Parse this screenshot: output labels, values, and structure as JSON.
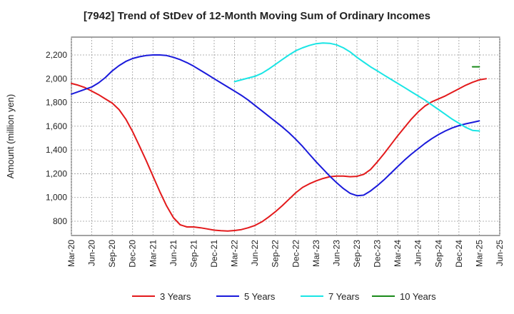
{
  "chart_data": {
    "type": "line",
    "title": "[7942]  Trend of StDev of 12-Month Moving Sum of Ordinary Incomes",
    "ylabel": "Amount (million yen)",
    "xlabel": "",
    "x_ticks": [
      "Mar-20",
      "Jun-20",
      "Sep-20",
      "Dec-20",
      "Mar-21",
      "Jun-21",
      "Sep-21",
      "Dec-21",
      "Mar-22",
      "Jun-22",
      "Sep-22",
      "Dec-22",
      "Mar-23",
      "Jun-23",
      "Sep-23",
      "Dec-23",
      "Mar-24",
      "Jun-24",
      "Sep-24",
      "Dec-24",
      "Mar-25",
      "Jun-25"
    ],
    "y_ticks": [
      800,
      1000,
      1200,
      1400,
      1600,
      1800,
      2000,
      2200
    ],
    "y_tick_labels": [
      "800",
      "1,000",
      "1,200",
      "1,400",
      "1,600",
      "1,800",
      "2,000",
      "2,200"
    ],
    "ylim": [
      680,
      2350
    ],
    "grid": true,
    "legend_position": "bottom",
    "series": [
      {
        "name": "3 Years",
        "color": "#e31a1c",
        "points": [
          [
            "Mar-20",
            1960
          ],
          [
            "Apr-20",
            1945
          ],
          [
            "May-20",
            1925
          ],
          [
            "Jun-20",
            1895
          ],
          [
            "Jul-20",
            1865
          ],
          [
            "Aug-20",
            1830
          ],
          [
            "Sep-20",
            1795
          ],
          [
            "Oct-20",
            1740
          ],
          [
            "Nov-20",
            1660
          ],
          [
            "Dec-20",
            1555
          ],
          [
            "Jan-21",
            1435
          ],
          [
            "Feb-21",
            1310
          ],
          [
            "Mar-21",
            1180
          ],
          [
            "Apr-21",
            1050
          ],
          [
            "May-21",
            930
          ],
          [
            "Jun-21",
            830
          ],
          [
            "Jul-21",
            770
          ],
          [
            "Aug-21",
            752
          ],
          [
            "Sep-21",
            752
          ],
          [
            "Oct-21",
            745
          ],
          [
            "Nov-21",
            735
          ],
          [
            "Dec-21",
            725
          ],
          [
            "Jan-22",
            720
          ],
          [
            "Feb-22",
            718
          ],
          [
            "Mar-22",
            722
          ],
          [
            "Apr-22",
            730
          ],
          [
            "May-22",
            745
          ],
          [
            "Jun-22",
            765
          ],
          [
            "Jul-22",
            795
          ],
          [
            "Aug-22",
            835
          ],
          [
            "Sep-22",
            880
          ],
          [
            "Oct-22",
            930
          ],
          [
            "Nov-22",
            985
          ],
          [
            "Dec-22",
            1040
          ],
          [
            "Jan-23",
            1085
          ],
          [
            "Feb-23",
            1115
          ],
          [
            "Mar-23",
            1140
          ],
          [
            "Apr-23",
            1160
          ],
          [
            "May-23",
            1175
          ],
          [
            "Jun-23",
            1180
          ],
          [
            "Jul-23",
            1180
          ],
          [
            "Aug-23",
            1175
          ],
          [
            "Sep-23",
            1178
          ],
          [
            "Oct-23",
            1195
          ],
          [
            "Nov-23",
            1235
          ],
          [
            "Dec-23",
            1300
          ],
          [
            "Jan-24",
            1370
          ],
          [
            "Feb-24",
            1445
          ],
          [
            "Mar-24",
            1520
          ],
          [
            "Apr-24",
            1590
          ],
          [
            "May-24",
            1660
          ],
          [
            "Jun-24",
            1720
          ],
          [
            "Jul-24",
            1770
          ],
          [
            "Aug-24",
            1805
          ],
          [
            "Sep-24",
            1830
          ],
          [
            "Oct-24",
            1855
          ],
          [
            "Nov-24",
            1885
          ],
          [
            "Dec-24",
            1915
          ],
          [
            "Jan-25",
            1945
          ],
          [
            "Feb-25",
            1970
          ],
          [
            "Mar-25",
            1990
          ],
          [
            "Apr-25",
            2000
          ]
        ]
      },
      {
        "name": "5 Years",
        "color": "#1a1adb",
        "points": [
          [
            "Mar-20",
            1870
          ],
          [
            "Apr-20",
            1890
          ],
          [
            "May-20",
            1910
          ],
          [
            "Jun-20",
            1930
          ],
          [
            "Jul-20",
            1965
          ],
          [
            "Aug-20",
            2010
          ],
          [
            "Sep-20",
            2065
          ],
          [
            "Oct-20",
            2110
          ],
          [
            "Nov-20",
            2145
          ],
          [
            "Dec-20",
            2170
          ],
          [
            "Jan-21",
            2185
          ],
          [
            "Feb-21",
            2195
          ],
          [
            "Mar-21",
            2200
          ],
          [
            "Apr-21",
            2200
          ],
          [
            "May-21",
            2195
          ],
          [
            "Jun-21",
            2180
          ],
          [
            "Jul-21",
            2160
          ],
          [
            "Aug-21",
            2135
          ],
          [
            "Sep-21",
            2105
          ],
          [
            "Oct-21",
            2070
          ],
          [
            "Nov-21",
            2035
          ],
          [
            "Dec-21",
            2000
          ],
          [
            "Jan-22",
            1965
          ],
          [
            "Feb-22",
            1930
          ],
          [
            "Mar-22",
            1895
          ],
          [
            "Apr-22",
            1860
          ],
          [
            "May-22",
            1820
          ],
          [
            "Jun-22",
            1775
          ],
          [
            "Jul-22",
            1730
          ],
          [
            "Aug-22",
            1685
          ],
          [
            "Sep-22",
            1640
          ],
          [
            "Oct-22",
            1595
          ],
          [
            "Nov-22",
            1545
          ],
          [
            "Dec-22",
            1490
          ],
          [
            "Jan-23",
            1430
          ],
          [
            "Feb-23",
            1365
          ],
          [
            "Mar-23",
            1300
          ],
          [
            "Apr-23",
            1240
          ],
          [
            "May-23",
            1180
          ],
          [
            "Jun-23",
            1125
          ],
          [
            "Jul-23",
            1075
          ],
          [
            "Aug-23",
            1035
          ],
          [
            "Sep-23",
            1015
          ],
          [
            "Oct-23",
            1020
          ],
          [
            "Nov-23",
            1055
          ],
          [
            "Dec-23",
            1100
          ],
          [
            "Jan-24",
            1150
          ],
          [
            "Feb-24",
            1205
          ],
          [
            "Mar-24",
            1260
          ],
          [
            "Apr-24",
            1315
          ],
          [
            "May-24",
            1365
          ],
          [
            "Jun-24",
            1410
          ],
          [
            "Jul-24",
            1455
          ],
          [
            "Aug-24",
            1495
          ],
          [
            "Sep-24",
            1530
          ],
          [
            "Oct-24",
            1560
          ],
          [
            "Nov-24",
            1585
          ],
          [
            "Dec-24",
            1605
          ],
          [
            "Jan-25",
            1620
          ],
          [
            "Feb-25",
            1632
          ],
          [
            "Mar-25",
            1645
          ]
        ]
      },
      {
        "name": "7 Years",
        "color": "#1ae5e5",
        "points": [
          [
            "Mar-22",
            1975
          ],
          [
            "Apr-22",
            1990
          ],
          [
            "May-22",
            2005
          ],
          [
            "Jun-22",
            2020
          ],
          [
            "Jul-22",
            2045
          ],
          [
            "Aug-22",
            2080
          ],
          [
            "Sep-22",
            2120
          ],
          [
            "Oct-22",
            2160
          ],
          [
            "Nov-22",
            2200
          ],
          [
            "Dec-22",
            2235
          ],
          [
            "Jan-23",
            2260
          ],
          [
            "Feb-23",
            2280
          ],
          [
            "Mar-23",
            2295
          ],
          [
            "Apr-23",
            2300
          ],
          [
            "May-23",
            2298
          ],
          [
            "Jun-23",
            2285
          ],
          [
            "Jul-23",
            2260
          ],
          [
            "Aug-23",
            2225
          ],
          [
            "Sep-23",
            2180
          ],
          [
            "Oct-23",
            2140
          ],
          [
            "Nov-23",
            2100
          ],
          [
            "Dec-23",
            2065
          ],
          [
            "Jan-24",
            2030
          ],
          [
            "Feb-24",
            1995
          ],
          [
            "Mar-24",
            1960
          ],
          [
            "Apr-24",
            1925
          ],
          [
            "May-24",
            1890
          ],
          [
            "Jun-24",
            1855
          ],
          [
            "Jul-24",
            1820
          ],
          [
            "Aug-24",
            1780
          ],
          [
            "Sep-24",
            1740
          ],
          [
            "Oct-24",
            1700
          ],
          [
            "Nov-24",
            1660
          ],
          [
            "Dec-24",
            1625
          ],
          [
            "Jan-25",
            1590
          ],
          [
            "Feb-25",
            1565
          ],
          [
            "Mar-25",
            1560
          ]
        ]
      },
      {
        "name": "10 Years",
        "color": "#1a8a1a",
        "points": [
          [
            "Feb-25",
            2100
          ],
          [
            "Mar-25",
            2100
          ]
        ]
      }
    ]
  }
}
